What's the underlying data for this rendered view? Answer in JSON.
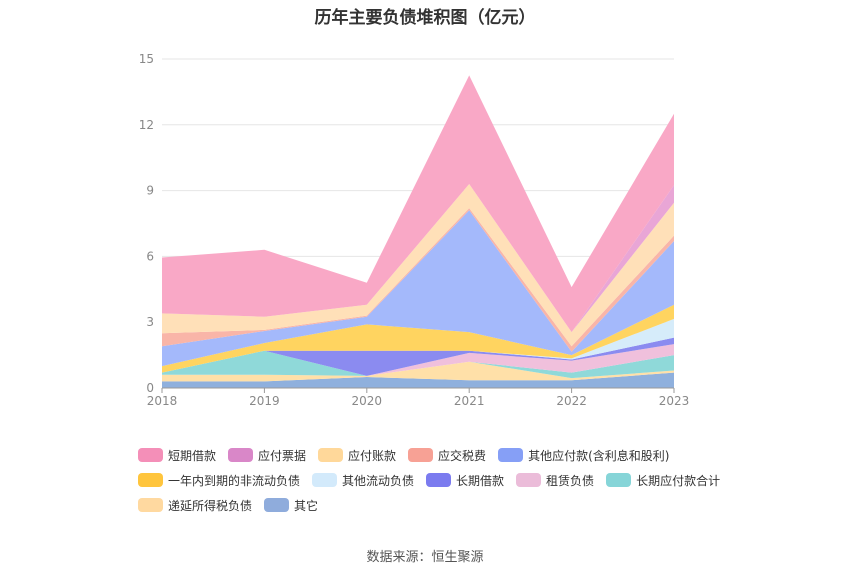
{
  "chart_data": {
    "type": "area",
    "title": "历年主要负债堆积图（亿元）",
    "stacked": true,
    "x": [
      "2018",
      "2019",
      "2020",
      "2021",
      "2022",
      "2023"
    ],
    "ylim": [
      0,
      15
    ],
    "yticks": [
      "0",
      "3",
      "6",
      "9",
      "12",
      "15"
    ],
    "grid": true,
    "legend_position": "bottom",
    "series": [
      {
        "name": "其它",
        "color": "#8fb0dd",
        "values": [
          0.3,
          0.3,
          0.5,
          0.35,
          0.35,
          0.7
        ]
      },
      {
        "name": "递延所得税负债",
        "color": "#ffe0a8",
        "values": [
          0.3,
          0.3,
          0.05,
          0.85,
          0.1,
          0.1
        ]
      },
      {
        "name": "长期应付款合计",
        "color": "#8fd9d9",
        "values": [
          0.1,
          1.1,
          0.0,
          0.0,
          0.25,
          0.7
        ]
      },
      {
        "name": "租赁负债",
        "color": "#f0c0dc",
        "values": [
          0.0,
          0.0,
          0.0,
          0.4,
          0.55,
          0.5
        ]
      },
      {
        "name": "长期借款",
        "color": "#8b8bf0",
        "values": [
          0.0,
          0.0,
          1.15,
          0.1,
          0.05,
          0.3
        ]
      },
      {
        "name": "其他流动负债",
        "color": "#d6ecfa",
        "values": [
          0.0,
          0.0,
          0.0,
          0.0,
          0.05,
          0.85
        ]
      },
      {
        "name": "一年内到期的非流动负债",
        "color": "#ffd460",
        "values": [
          0.3,
          0.35,
          1.2,
          0.85,
          0.15,
          0.65
        ]
      },
      {
        "name": "其他应付款(含利息和股利)",
        "color": "#a4b9fb",
        "values": [
          0.9,
          0.55,
          0.35,
          5.55,
          0.15,
          2.9
        ]
      },
      {
        "name": "应交税费",
        "color": "#f9b5a8",
        "values": [
          0.6,
          0.05,
          0.05,
          0.1,
          0.25,
          0.25
        ]
      },
      {
        "name": "应付账款",
        "color": "#ffe0b8",
        "values": [
          0.9,
          0.6,
          0.5,
          1.1,
          0.65,
          1.5
        ]
      },
      {
        "name": "应付票据",
        "color": "#e9a6d6",
        "values": [
          0.0,
          0.0,
          0.0,
          0.0,
          0.0,
          0.8
        ]
      },
      {
        "name": "短期借款",
        "color": "#f9a8c6",
        "values": [
          2.55,
          3.05,
          1.0,
          4.95,
          2.05,
          3.25
        ]
      }
    ]
  },
  "legend": [
    {
      "label": "短期借款",
      "color": "#f48fb8"
    },
    {
      "label": "应付票据",
      "color": "#d987c8"
    },
    {
      "label": "应付账款",
      "color": "#ffd89a"
    },
    {
      "label": "应交税费",
      "color": "#f7a195"
    },
    {
      "label": "其他应付款(含利息和股利)",
      "color": "#869ff6"
    },
    {
      "label": "一年内到期的非流动负债",
      "color": "#ffc53d"
    },
    {
      "label": "其他流动负债",
      "color": "#d3eafb"
    },
    {
      "label": "长期借款",
      "color": "#7b7bef"
    },
    {
      "label": "租赁负债",
      "color": "#ebbcd9"
    },
    {
      "label": "长期应付款合计",
      "color": "#86d5d8"
    },
    {
      "label": "递延所得税负债",
      "color": "#ffd9a0"
    },
    {
      "label": "其它",
      "color": "#8facdc"
    }
  ],
  "source": "数据来源：恒生聚源"
}
